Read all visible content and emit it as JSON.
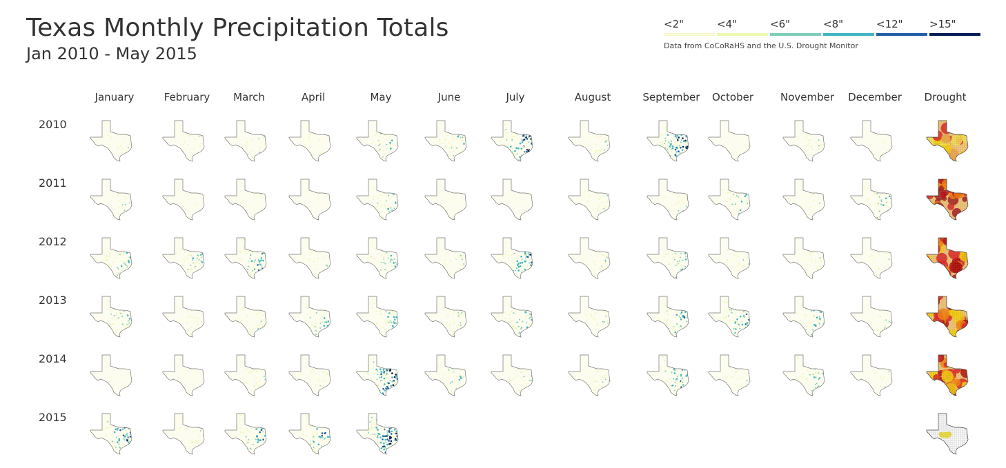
{
  "title": "Texas Monthly Precipitation Totals",
  "subtitle": "Jan 2010 - May 2015",
  "legend": {
    "items": [
      {
        "label": "<2\"",
        "color": "#ffffd9"
      },
      {
        "label": "<4\"",
        "color": "#edf8b1"
      },
      {
        "label": "<6\"",
        "color": "#7fcdbb"
      },
      {
        "label": "<8\"",
        "color": "#41b6c4"
      },
      {
        "label": "<12\"",
        "color": "#225ea8"
      },
      {
        "label": ">15\"",
        "color": "#081d58"
      }
    ],
    "source": "Data from CoCoRaHS and the U.S. Drought Monitor"
  },
  "columns": [
    "January",
    "February",
    "March",
    "April",
    "May",
    "June",
    "July",
    "August",
    "September",
    "October",
    "November",
    "December",
    "Drought"
  ],
  "rows": [
    {
      "year": "2010",
      "months": [
        1,
        1,
        1,
        1,
        2,
        2,
        4,
        1,
        4,
        0,
        1,
        0
      ],
      "drought": 2
    },
    {
      "year": "2011",
      "months": [
        1,
        0,
        0,
        0,
        2,
        0,
        0,
        1,
        1,
        2,
        1,
        2
      ],
      "drought": 4
    },
    {
      "year": "2012",
      "months": [
        2,
        2,
        3,
        1,
        2,
        1,
        3,
        1,
        2,
        1,
        1,
        1
      ],
      "drought": 3
    },
    {
      "year": "2013",
      "months": [
        2,
        1,
        1,
        2,
        2,
        1,
        2,
        1,
        3,
        3,
        2,
        1
      ],
      "drought": 3
    },
    {
      "year": "2014",
      "months": [
        0,
        0,
        1,
        1,
        4,
        2,
        1,
        1,
        3,
        1,
        2,
        1
      ],
      "drought": 3
    },
    {
      "year": "2015",
      "months": [
        3,
        1,
        3,
        3,
        5
      ],
      "drought": 1
    }
  ]
}
